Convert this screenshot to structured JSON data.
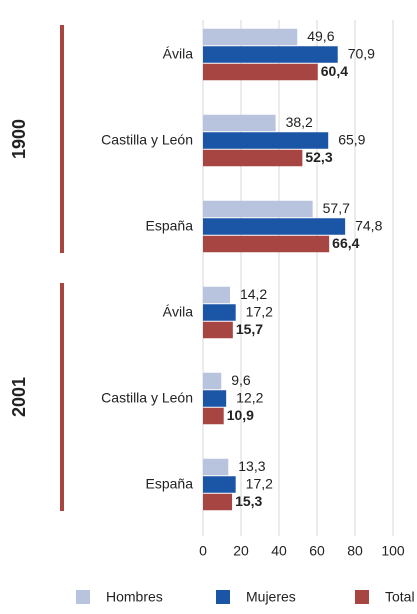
{
  "chart_data": {
    "type": "bar",
    "orientation": "horizontal",
    "groups": [
      "1900",
      "2001"
    ],
    "categories": [
      "Ávila",
      "Castilla y León",
      "España",
      "Ávila",
      "Castilla y León",
      "España"
    ],
    "series": [
      {
        "name": "Hombres",
        "color": "#b8c3dd",
        "values": [
          49.6,
          38.2,
          57.7,
          14.2,
          9.6,
          13.3
        ],
        "value_labels": [
          "49,6",
          "38,2",
          "57,7",
          "14,2",
          "9,6",
          "13,3"
        ]
      },
      {
        "name": "Mujeres",
        "color": "#1b55a6",
        "values": [
          70.9,
          65.9,
          74.8,
          17.2,
          12.2,
          17.2
        ],
        "value_labels": [
          "70,9",
          "65,9",
          "74,8",
          "17,2",
          "12,2",
          "17,2"
        ]
      },
      {
        "name": "Total",
        "color": "#a64541",
        "values": [
          60.4,
          52.3,
          66.4,
          15.7,
          10.9,
          15.3
        ],
        "value_labels": [
          "60,4",
          "52,3",
          "66,4",
          "15,7",
          "10,9",
          "15,3"
        ]
      }
    ],
    "xlim": [
      0,
      100
    ],
    "xticks": [
      0,
      20,
      40,
      60,
      80,
      100
    ],
    "grid": true,
    "legend": "bottom"
  }
}
